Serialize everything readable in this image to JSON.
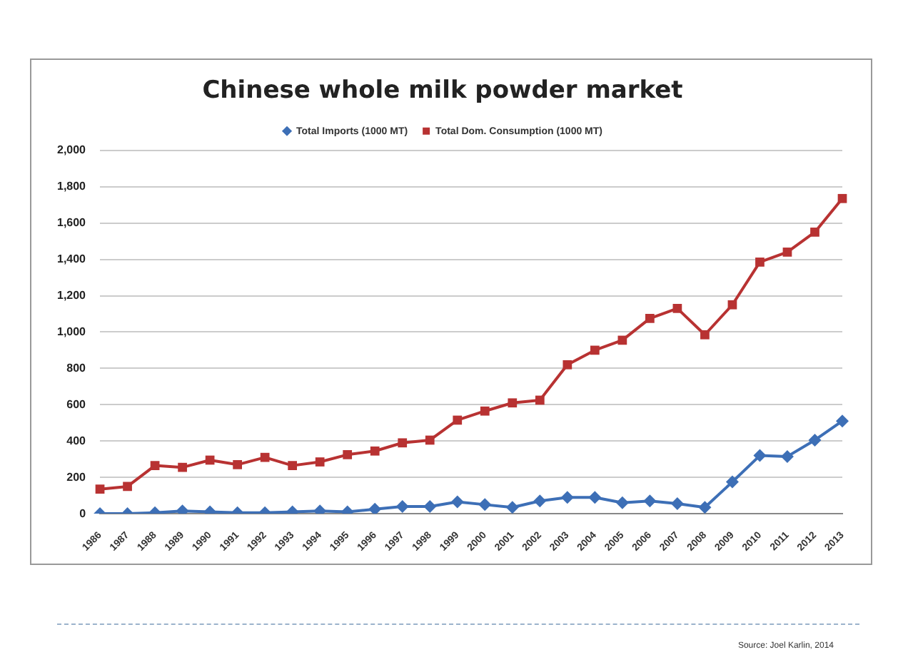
{
  "chart_data": {
    "type": "line",
    "title": "Chinese whole milk powder market",
    "categories": [
      "1986",
      "1987",
      "1988",
      "1989",
      "1990",
      "1991",
      "1992",
      "1993",
      "1994",
      "1995",
      "1996",
      "1997",
      "1998",
      "1999",
      "2000",
      "2001",
      "2002",
      "2003",
      "2004",
      "2005",
      "2006",
      "2007",
      "2008",
      "2009",
      "2010",
      "2011",
      "2012",
      "2013"
    ],
    "series": [
      {
        "name": "Total Imports (1000 MT)",
        "color": "#3d6fb6",
        "marker": "diamond",
        "values": [
          0,
          0,
          5,
          15,
          10,
          5,
          5,
          10,
          15,
          10,
          25,
          40,
          40,
          65,
          50,
          35,
          70,
          90,
          90,
          60,
          70,
          55,
          35,
          175,
          320,
          315,
          405,
          510
        ]
      },
      {
        "name": "Total Dom. Consumption (1000 MT)",
        "color": "#b83232",
        "marker": "square",
        "values": [
          135,
          150,
          265,
          255,
          295,
          270,
          310,
          265,
          285,
          325,
          345,
          390,
          405,
          515,
          565,
          610,
          625,
          820,
          900,
          955,
          1075,
          1130,
          985,
          1150,
          1385,
          1440,
          1550,
          1735
        ]
      }
    ],
    "ylim": [
      0,
      2000
    ],
    "yticks": [
      0,
      200,
      400,
      600,
      800,
      {
        "value": 1000,
        "label": "1,000"
      },
      {
        "value": 1200,
        "label": "1,200"
      },
      {
        "value": 1400,
        "label": "1,400"
      },
      {
        "value": 1600,
        "label": "1,600"
      },
      {
        "value": 1800,
        "label": "1,800"
      },
      {
        "value": 2000,
        "label": "2,000"
      }
    ],
    "grid": "y",
    "legend": "top",
    "annotations": [
      "Source: Joel Karlin, 2014"
    ]
  }
}
